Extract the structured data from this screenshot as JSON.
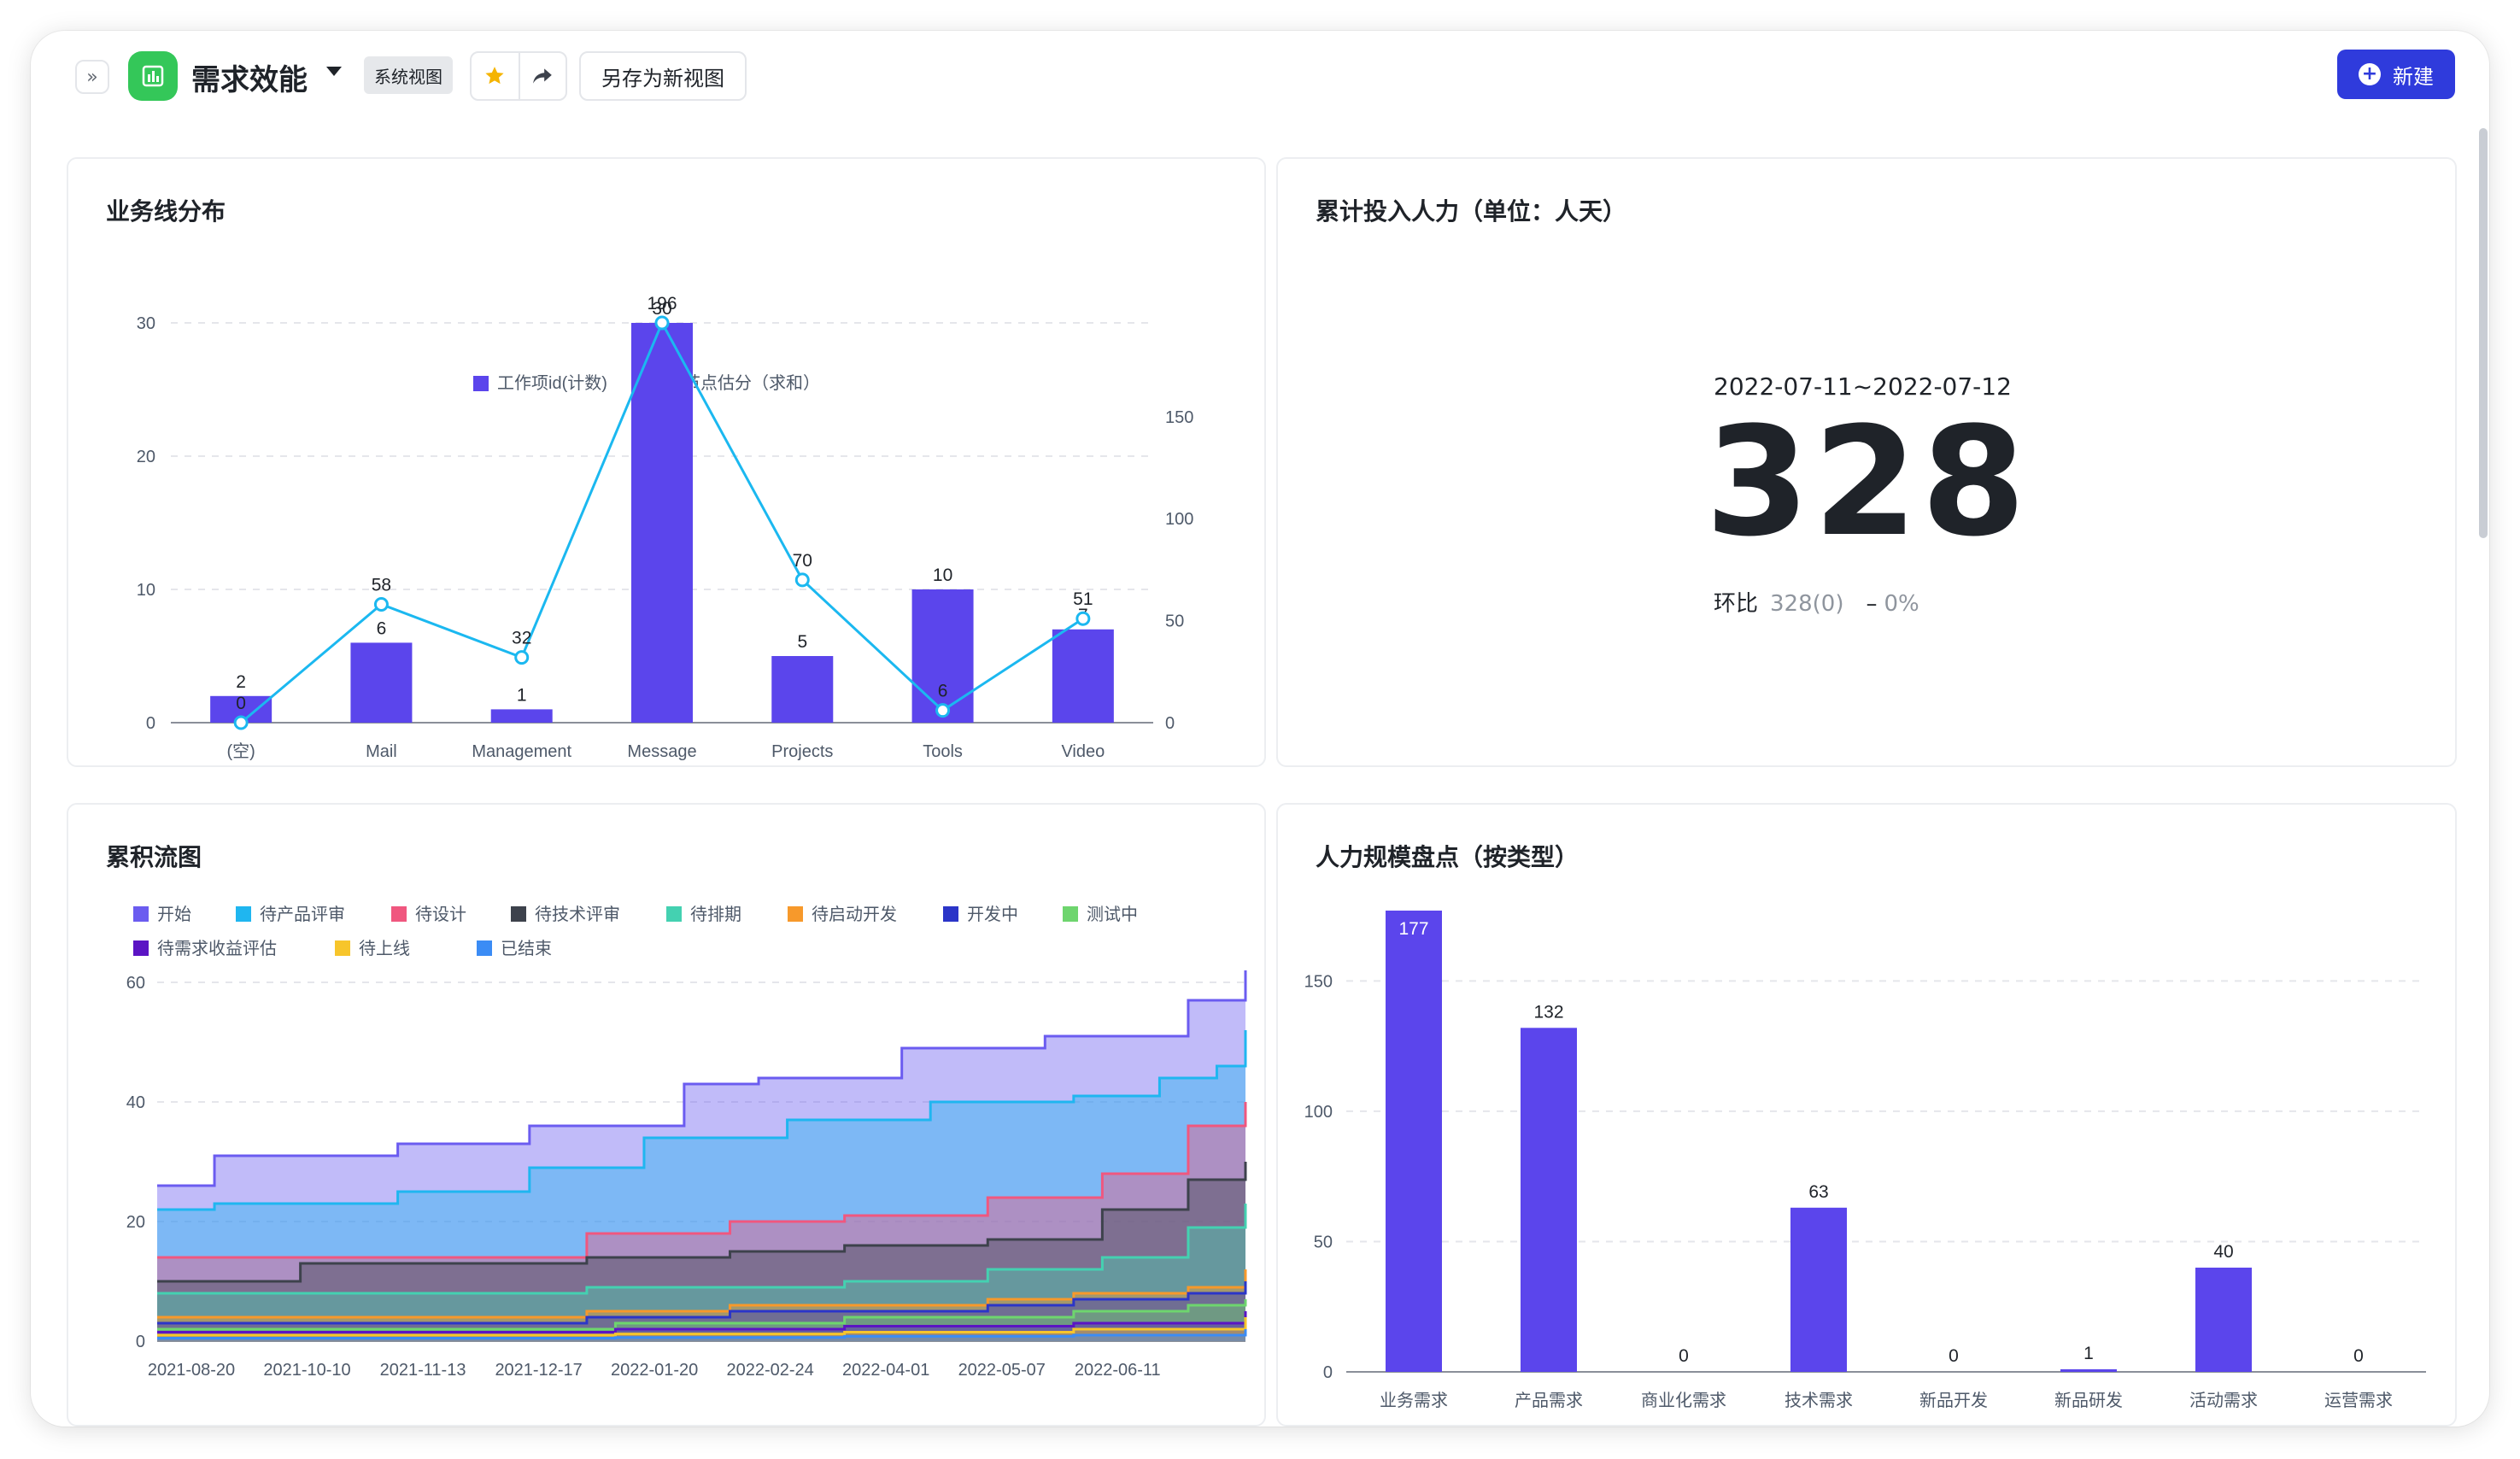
{
  "header": {
    "title": "需求效能",
    "view_badge": "系统视图",
    "save_as_label": "另存为新视图",
    "new_label": "新建",
    "icons": {
      "expand": "double-chevron-right-icon",
      "app": "bar-chart-icon",
      "star": "star-icon",
      "share": "share-arrow-icon",
      "plus": "plus-circle-icon"
    },
    "colors": {
      "accent": "#2f3bdc",
      "app_icon": "#34c759",
      "star": "#f5b400"
    }
  },
  "cards": {
    "business_line": {
      "title": "业务线分布"
    },
    "cumulative_effort": {
      "title": "累计投入人力（单位：人天）"
    },
    "cumulative_flow": {
      "title": "累积流图"
    },
    "manpower": {
      "title": "人力规模盘点（按类型）"
    }
  },
  "kpi": {
    "range": "2022-07-11~2022-07-12",
    "value": "328",
    "compare_label": "环比",
    "compare_prev": "328(0)",
    "compare_dash": "–",
    "compare_pct": "0%"
  },
  "chart_data": [
    {
      "id": "business_line",
      "type": "bar",
      "categories": [
        "(空)",
        "Mail",
        "Management",
        "Message",
        "Projects",
        "Tools",
        "Video"
      ],
      "series": [
        {
          "name": "工作项id(计数)",
          "type": "bar",
          "axis": "left",
          "color": "#5b45ec",
          "values": [
            2,
            6,
            1,
            30,
            5,
            10,
            7
          ]
        },
        {
          "name": "节点估分（求和）",
          "type": "line",
          "axis": "right",
          "color": "#1bb8f0",
          "values": [
            0,
            58,
            32,
            196,
            70,
            6,
            51
          ]
        }
      ],
      "y_left": {
        "ticks": [
          0,
          10,
          20,
          30
        ],
        "ylim": [
          0,
          30
        ]
      },
      "y_right": {
        "ticks": [
          0,
          50,
          100,
          150
        ],
        "ylim": [
          0,
          196
        ]
      },
      "legend_position": "top-center",
      "grid": true
    },
    {
      "id": "cumulative_flow",
      "type": "area",
      "stacked": true,
      "legend": [
        {
          "name": "开始",
          "color": "#6b5cf0"
        },
        {
          "name": "待产品评审",
          "color": "#1fb6f0"
        },
        {
          "name": "待设计",
          "color": "#f0577f"
        },
        {
          "name": "待技术评审",
          "color": "#3d424c"
        },
        {
          "name": "待排期",
          "color": "#44d1b1"
        },
        {
          "name": "待启动开发",
          "color": "#f7992b"
        },
        {
          "name": "开发中",
          "color": "#2b35c8"
        },
        {
          "name": "测试中",
          "color": "#6ed56e"
        },
        {
          "name": "待需求收益评估",
          "color": "#5b14c4"
        },
        {
          "name": "待上线",
          "color": "#f7c52b"
        },
        {
          "name": "已结束",
          "color": "#3b8cf5"
        }
      ],
      "x_ticks": [
        "2021-08-20",
        "2021-10-10",
        "2021-11-13",
        "2021-12-17",
        "2022-01-20",
        "2022-02-24",
        "2022-04-01",
        "2022-05-07",
        "2022-06-11"
      ],
      "y_ticks": [
        0,
        20,
        40,
        60
      ],
      "ylim": [
        0,
        60
      ],
      "series_top_profiles": [
        {
          "name": "开始",
          "points": [
            [
              0,
              26
            ],
            [
              1,
              31
            ],
            [
              4.2,
              33
            ],
            [
              5.5,
              33
            ],
            [
              6.5,
              36
            ],
            [
              9.2,
              43
            ],
            [
              10.5,
              44
            ],
            [
              13,
              49
            ],
            [
              15.5,
              51
            ],
            [
              18,
              57
            ],
            [
              19,
              62
            ]
          ]
        },
        {
          "name": "待产品评审",
          "points": [
            [
              0,
              22
            ],
            [
              1,
              23
            ],
            [
              4.2,
              25
            ],
            [
              6.5,
              29
            ],
            [
              8.5,
              34
            ],
            [
              11,
              37
            ],
            [
              13.5,
              40
            ],
            [
              16,
              41
            ],
            [
              17.5,
              44
            ],
            [
              18.5,
              46
            ],
            [
              19,
              52
            ]
          ]
        },
        {
          "name": "待设计",
          "points": [
            [
              0,
              14
            ],
            [
              2.5,
              14
            ],
            [
              4.2,
              14
            ],
            [
              7.5,
              18
            ],
            [
              10,
              20
            ],
            [
              12,
              21
            ],
            [
              14.5,
              24
            ],
            [
              16.5,
              28
            ],
            [
              18,
              36
            ],
            [
              19,
              40
            ]
          ]
        },
        {
          "name": "待技术评审",
          "points": [
            [
              0,
              10
            ],
            [
              2.5,
              13
            ],
            [
              4.2,
              13
            ],
            [
              7.5,
              14
            ],
            [
              10,
              15
            ],
            [
              12,
              16
            ],
            [
              14.5,
              17
            ],
            [
              16.5,
              22
            ],
            [
              18,
              27
            ],
            [
              19,
              30
            ]
          ]
        },
        {
          "name": "待排期",
          "points": [
            [
              0,
              8
            ],
            [
              4.2,
              8
            ],
            [
              7.5,
              9
            ],
            [
              10,
              9
            ],
            [
              12,
              10
            ],
            [
              14.5,
              12
            ],
            [
              16.5,
              14
            ],
            [
              18,
              19
            ],
            [
              19,
              23
            ]
          ]
        },
        {
          "name": "待启动开发",
          "points": [
            [
              0,
              4
            ],
            [
              7.5,
              5
            ],
            [
              10,
              6
            ],
            [
              12,
              6
            ],
            [
              14.5,
              7
            ],
            [
              16,
              8
            ],
            [
              18,
              9
            ],
            [
              19,
              12
            ]
          ]
        },
        {
          "name": "开发中",
          "points": [
            [
              0,
              3
            ],
            [
              7.5,
              4
            ],
            [
              10,
              5
            ],
            [
              12,
              5
            ],
            [
              14.5,
              6
            ],
            [
              16,
              7
            ],
            [
              18,
              8
            ],
            [
              19,
              10
            ]
          ]
        },
        {
          "name": "测试中",
          "points": [
            [
              0,
              2
            ],
            [
              8,
              3
            ],
            [
              12,
              4
            ],
            [
              14.5,
              4
            ],
            [
              16,
              5
            ],
            [
              18,
              6
            ],
            [
              19,
              7
            ]
          ]
        },
        {
          "name": "待需求收益评估",
          "points": [
            [
              0,
              1.5
            ],
            [
              8,
              2
            ],
            [
              12,
              2.5
            ],
            [
              16,
              3
            ],
            [
              19,
              5
            ]
          ]
        },
        {
          "name": "待上线",
          "points": [
            [
              0,
              1
            ],
            [
              8,
              1.2
            ],
            [
              12,
              1.5
            ],
            [
              16,
              2
            ],
            [
              19,
              4
            ]
          ]
        },
        {
          "name": "已结束",
          "points": [
            [
              0,
              0.5
            ],
            [
              8,
              0.6
            ],
            [
              12,
              0.8
            ],
            [
              16,
              1
            ],
            [
              19,
              2
            ]
          ]
        }
      ],
      "legend_position": "top-left",
      "grid": true
    },
    {
      "id": "manpower",
      "type": "bar",
      "categories": [
        "业务需求",
        "产品需求",
        "商业化需求",
        "技术需求",
        "新品开发",
        "新品研发",
        "活动需求",
        "运营需求"
      ],
      "values": [
        177,
        132,
        0,
        63,
        0,
        1,
        40,
        0
      ],
      "color": "#5b45ec",
      "y_ticks": [
        0,
        50,
        100,
        150
      ],
      "ylim": [
        0,
        177
      ],
      "grid": true
    }
  ]
}
